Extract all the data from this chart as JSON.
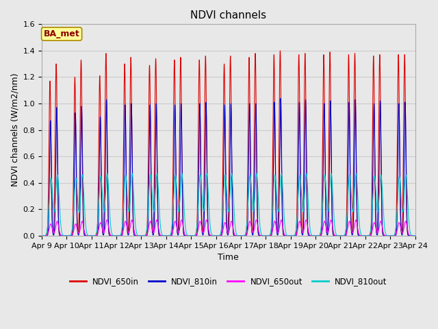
{
  "title": "NDVI channels",
  "ylabel": "NDVI channels (W/m2/nm)",
  "xlabel": "Time",
  "annotation": "BA_met",
  "ylim": [
    0.0,
    1.6
  ],
  "xtick_labels": [
    "Apr 9",
    "Apr 10",
    "Apr 11",
    "Apr 12",
    "Apr 13",
    "Apr 14",
    "Apr 15",
    "Apr 16",
    "Apr 17",
    "Apr 18",
    "Apr 19",
    "Apr 20",
    "Apr 21",
    "Apr 22",
    "Apr 23",
    "Apr 24"
  ],
  "series": {
    "NDVI_650in": {
      "color": "#dd0000"
    },
    "NDVI_810in": {
      "color": "#0000cc"
    },
    "NDVI_650out": {
      "color": "#ff00ff"
    },
    "NDVI_810out": {
      "color": "#00cccc"
    }
  },
  "legend_entries": [
    "NDVI_650in",
    "NDVI_810in",
    "NDVI_650out",
    "NDVI_810out"
  ],
  "legend_colors": [
    "#dd0000",
    "#0000cc",
    "#ff00ff",
    "#00cccc"
  ],
  "figure_bg_color": "#e8e8e8",
  "axes_bg_color": "#e8e8e8",
  "grid_color": "#cccccc",
  "title_fontsize": 11,
  "label_fontsize": 9,
  "tick_fontsize": 8
}
